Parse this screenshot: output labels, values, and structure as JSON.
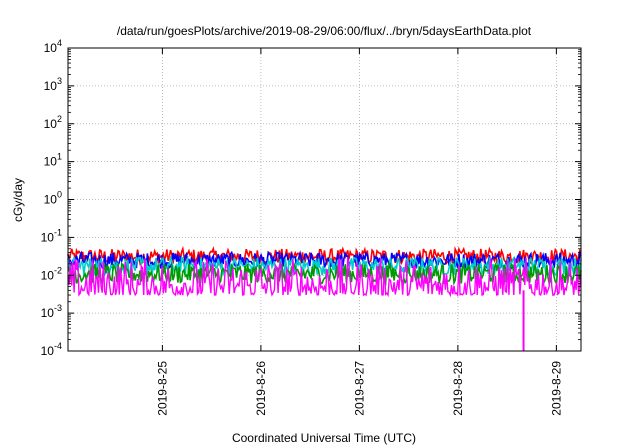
{
  "chart_data": {
    "type": "line",
    "title": "/data/run/goesPlots/archive/2019-08-29/06:00/flux/../bryn/5daysEarthData.plot",
    "xlabel": "Coordinated Universal Time (UTC)",
    "ylabel": "cGy/day",
    "yscale": "log",
    "ylim": [
      0.0001,
      10000
    ],
    "xlim": [
      "2019-08-24T01:00",
      "2019-08-29T06:00"
    ],
    "grid": true,
    "y_ticks": [
      {
        "base": "10",
        "exp": "-4",
        "value": 0.0001
      },
      {
        "base": "10",
        "exp": "-3",
        "value": 0.001
      },
      {
        "base": "10",
        "exp": "-2",
        "value": 0.01
      },
      {
        "base": "10",
        "exp": "-1",
        "value": 0.1
      },
      {
        "base": "10",
        "exp": "0",
        "value": 1
      },
      {
        "base": "10",
        "exp": "1",
        "value": 10
      },
      {
        "base": "10",
        "exp": "2",
        "value": 100
      },
      {
        "base": "10",
        "exp": "3",
        "value": 1000
      },
      {
        "base": "10",
        "exp": "4",
        "value": 10000
      }
    ],
    "x_ticks": [
      {
        "label": "2019-8-25",
        "value": "2019-08-25T00:00"
      },
      {
        "label": "2019-8-26",
        "value": "2019-08-26T00:00"
      },
      {
        "label": "2019-8-27",
        "value": "2019-08-27T00:00"
      },
      {
        "label": "2019-8-28",
        "value": "2019-08-28T00:00"
      },
      {
        "label": "2019-8-29",
        "value": "2019-08-29T00:00"
      }
    ],
    "series": [
      {
        "color": "#ff0000",
        "typical_range": [
          0.02,
          0.05
        ]
      },
      {
        "color": "#0000ff",
        "typical_range": [
          0.015,
          0.04
        ]
      },
      {
        "color": "#00cccc",
        "typical_range": [
          0.01,
          0.03
        ]
      },
      {
        "color": "#009900",
        "typical_range": [
          0.006,
          0.02
        ]
      },
      {
        "color": "#ff00ff",
        "typical_range": [
          0.003,
          0.03
        ]
      }
    ],
    "annotations": [
      {
        "series_color": "#ff00ff",
        "x": "2019-08-28T16:00",
        "y": 0.0001,
        "note": "dropout spike"
      }
    ]
  }
}
